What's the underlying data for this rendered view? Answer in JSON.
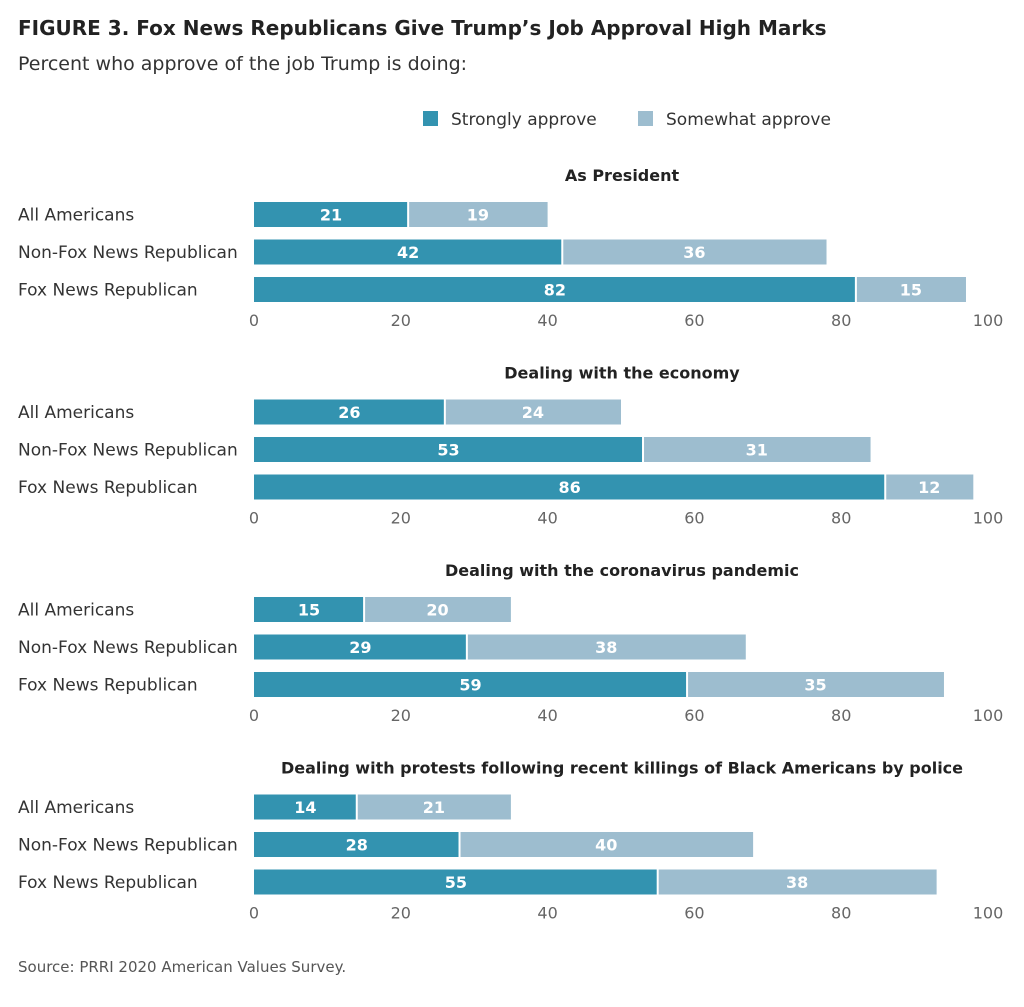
{
  "chart_data": {
    "type": "bar",
    "orientation": "horizontal",
    "stacked": true,
    "title": "FIGURE 3. Fox News Republicans Give Trump’s Job Approval High Marks",
    "subtitle": "Percent who approve of the job Trump is doing:",
    "source": "Source: PRRI 2020 American Values Survey.",
    "legend_position": "top-right",
    "legend": [
      {
        "name": "Strongly approve",
        "color": "#3393b0"
      },
      {
        "name": "Somewhat approve",
        "color": "#9dbdcf"
      }
    ],
    "xlim": [
      0,
      100
    ],
    "xticks": [
      "0",
      "20",
      "40",
      "60",
      "80",
      "100"
    ],
    "grid": false,
    "panels": [
      {
        "title": "As President",
        "categories": [
          "All Americans",
          "Non-Fox News Republican",
          "Fox News Republican"
        ],
        "series": [
          {
            "name": "Strongly approve",
            "values": [
              21,
              42,
              82
            ]
          },
          {
            "name": "Somewhat approve",
            "values": [
              19,
              36,
              15
            ]
          }
        ]
      },
      {
        "title": "Dealing with the economy",
        "categories": [
          "All Americans",
          "Non-Fox News Republican",
          "Fox News Republican"
        ],
        "series": [
          {
            "name": "Strongly approve",
            "values": [
              26,
              53,
              86
            ]
          },
          {
            "name": "Somewhat approve",
            "values": [
              24,
              31,
              12
            ]
          }
        ]
      },
      {
        "title": "Dealing with the coronavirus pandemic",
        "categories": [
          "All Americans",
          "Non-Fox News Republican",
          "Fox News Republican"
        ],
        "series": [
          {
            "name": "Strongly approve",
            "values": [
              15,
              29,
              59
            ]
          },
          {
            "name": "Somewhat approve",
            "values": [
              20,
              38,
              35
            ]
          }
        ]
      },
      {
        "title": "Dealing with protests following recent killings of Black Americans by police",
        "categories": [
          "All Americans",
          "Non-Fox News Republican",
          "Fox News Republican"
        ],
        "series": [
          {
            "name": "Strongly approve",
            "values": [
              14,
              28,
              55
            ]
          },
          {
            "name": "Somewhat approve",
            "values": [
              21,
              40,
              38
            ]
          }
        ]
      }
    ]
  }
}
